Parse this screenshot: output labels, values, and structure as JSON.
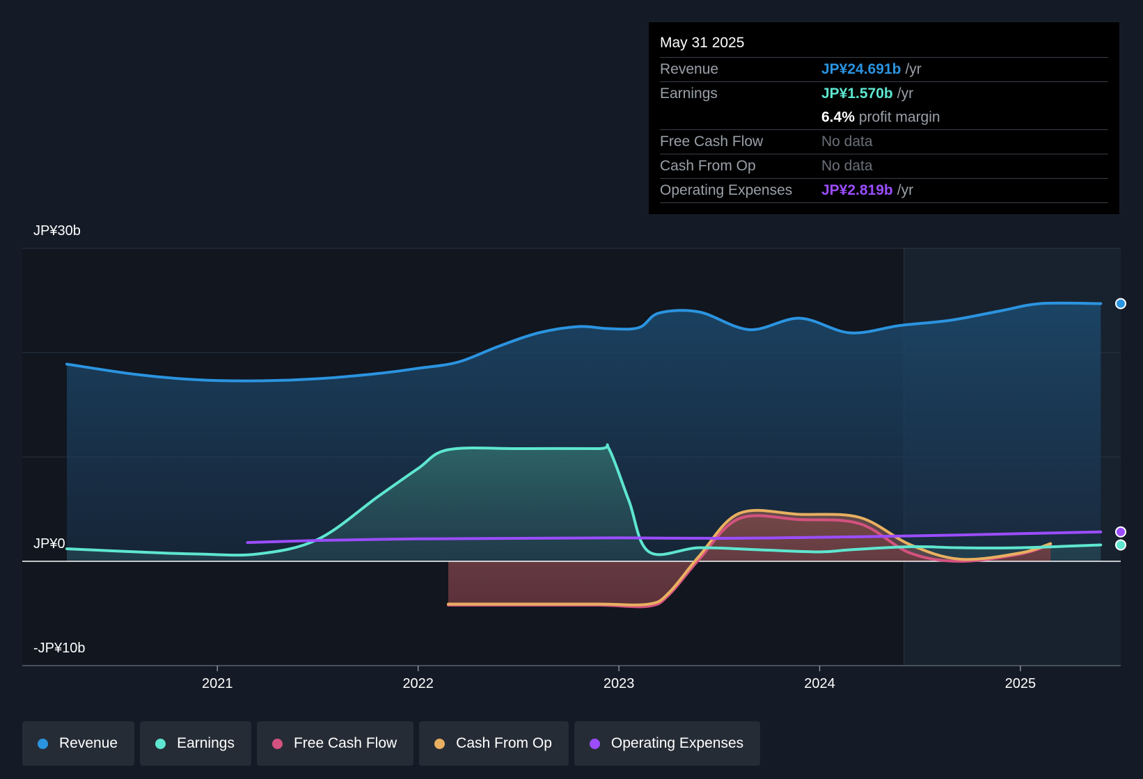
{
  "chart_data": {
    "type": "area",
    "y_axis_labels": [
      "JP¥30b",
      "JP¥0",
      "-JP¥10b"
    ],
    "ylim": [
      -10,
      30
    ],
    "xlim": [
      2020.1,
      2025.4
    ],
    "x_ticks": [
      "2021",
      "2022",
      "2023",
      "2024",
      "2025"
    ],
    "grid": true,
    "forecast_shading_start": 2024.42,
    "series": [
      {
        "name": "Revenue",
        "color": "#2b94e0",
        "x": [
          2020.25,
          2020.6,
          2020.9,
          2021.2,
          2021.5,
          2021.8,
          2022.0,
          2022.2,
          2022.4,
          2022.6,
          2022.8,
          2022.95,
          2023.1,
          2023.2,
          2023.4,
          2023.65,
          2023.9,
          2024.15,
          2024.4,
          2024.65,
          2024.9,
          2025.1,
          2025.4
        ],
        "values": [
          18.9,
          17.9,
          17.4,
          17.3,
          17.5,
          18.0,
          18.5,
          19.1,
          20.6,
          21.9,
          22.5,
          22.3,
          22.4,
          23.8,
          23.9,
          22.2,
          23.3,
          21.9,
          22.6,
          23.1,
          24.0,
          24.7,
          24.7
        ]
      },
      {
        "name": "Earnings",
        "color": "#5ee6d0",
        "x": [
          2020.25,
          2020.6,
          2020.9,
          2021.2,
          2021.5,
          2021.8,
          2022.0,
          2022.15,
          2022.5,
          2022.9,
          2022.95,
          2023.05,
          2023.15,
          2023.4,
          2023.7,
          2024.0,
          2024.15,
          2024.45,
          2024.7,
          2025.0,
          2025.4
        ],
        "values": [
          1.2,
          0.9,
          0.7,
          0.7,
          2.1,
          6.2,
          8.9,
          10.7,
          10.8,
          10.8,
          10.8,
          5.8,
          0.9,
          1.3,
          1.1,
          0.9,
          1.1,
          1.4,
          1.3,
          1.3,
          1.57
        ]
      },
      {
        "name": "Free Cash Flow",
        "color": "#d4527f",
        "x": [
          2022.15,
          2022.5,
          2022.9,
          2023.15,
          2023.25,
          2023.4,
          2023.6,
          2023.9,
          2024.2,
          2024.45,
          2024.7,
          2025.0,
          2025.15
        ],
        "values": [
          -4.2,
          -4.2,
          -4.2,
          -4.3,
          -3.2,
          0.2,
          4.1,
          4.0,
          3.6,
          0.8,
          0.0,
          0.7,
          1.6
        ]
      },
      {
        "name": "Cash From Op",
        "color": "#e8b060",
        "x": [
          2022.15,
          2022.5,
          2022.9,
          2023.15,
          2023.25,
          2023.4,
          2023.6,
          2023.9,
          2024.2,
          2024.45,
          2024.7,
          2025.0,
          2025.15
        ],
        "values": [
          -4.1,
          -4.1,
          -4.1,
          -4.1,
          -3.0,
          0.5,
          4.6,
          4.5,
          4.2,
          1.6,
          0.2,
          0.8,
          1.7
        ]
      },
      {
        "name": "Operating Expenses",
        "color": "#9b4dff",
        "x": [
          2021.15,
          2021.5,
          2022.0,
          2022.5,
          2023.0,
          2023.5,
          2024.0,
          2024.5,
          2025.0,
          2025.4
        ],
        "values": [
          1.8,
          2.0,
          2.15,
          2.2,
          2.25,
          2.2,
          2.3,
          2.45,
          2.65,
          2.82
        ]
      }
    ]
  },
  "tooltip": {
    "date": "May 31 2025",
    "rows": [
      {
        "label": "Revenue",
        "value": "JP¥24.691b",
        "unit": "/yr",
        "color": "#2b94e0"
      },
      {
        "label": "Earnings",
        "value": "JP¥1.570b",
        "unit": "/yr",
        "color": "#5ee6d0"
      },
      {
        "label": "",
        "value": "6.4%",
        "unit": "profit margin",
        "color": "#ffffff"
      },
      {
        "label": "Free Cash Flow",
        "value": "No data",
        "unit": "",
        "color": ""
      },
      {
        "label": "Cash From Op",
        "value": "No data",
        "unit": "",
        "color": ""
      },
      {
        "label": "Operating Expenses",
        "value": "JP¥2.819b",
        "unit": "/yr",
        "color": "#9b4dff"
      }
    ]
  },
  "legend": [
    {
      "label": "Revenue",
      "color": "#2b94e0"
    },
    {
      "label": "Earnings",
      "color": "#5ee6d0"
    },
    {
      "label": "Free Cash Flow",
      "color": "#d4527f"
    },
    {
      "label": "Cash From Op",
      "color": "#e8b060"
    },
    {
      "label": "Operating Expenses",
      "color": "#9b4dff"
    }
  ]
}
